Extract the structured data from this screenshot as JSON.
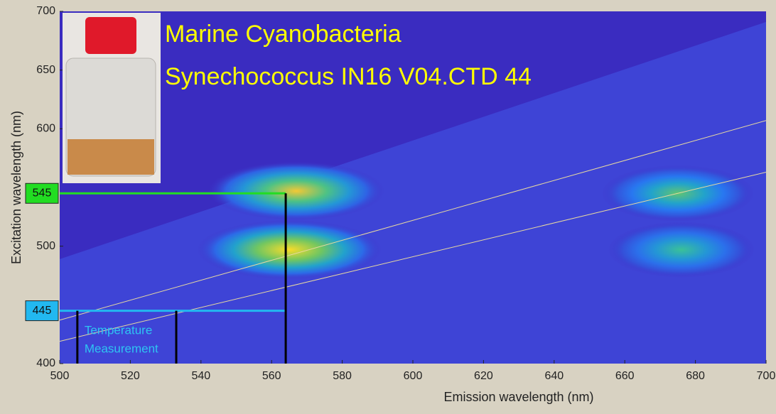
{
  "chart_data": {
    "type": "heatmap",
    "title_lines": [
      "Marine Cyanobacteria",
      "Synechococcus IN16 V04.CTD 44"
    ],
    "xlabel": "Emission wavelength (nm)",
    "ylabel": "Excitation wavelength (nm)",
    "xlim": [
      500,
      700
    ],
    "ylim": [
      400,
      700
    ],
    "xticks": [
      500,
      520,
      540,
      560,
      580,
      600,
      620,
      640,
      660,
      680,
      700
    ],
    "yticks": [
      400,
      500,
      600,
      650,
      700
    ],
    "peaks": [
      {
        "x": 567,
        "y": 547,
        "value": 0.9
      },
      {
        "x": 565,
        "y": 497,
        "value": 1.0
      },
      {
        "x": 675,
        "y": 545,
        "value": 0.62
      },
      {
        "x": 676,
        "y": 497,
        "value": 0.55
      }
    ],
    "cutoff_line": [
      [
        500,
        489
      ],
      [
        700,
        691
      ]
    ],
    "scatter_lines": [
      [
        [
          500,
          437
        ],
        [
          700,
          607
        ]
      ],
      [
        [
          500,
          419
        ],
        [
          700,
          563
        ]
      ]
    ],
    "excitation_markers": [
      {
        "value": 545,
        "color": "#22dd22"
      },
      {
        "value": 445,
        "color": "#22b8f0"
      }
    ],
    "emission_marker": 564,
    "temperature_range": [
      505,
      533
    ],
    "temperature_text": [
      "Temperature",
      "Measurement"
    ]
  }
}
